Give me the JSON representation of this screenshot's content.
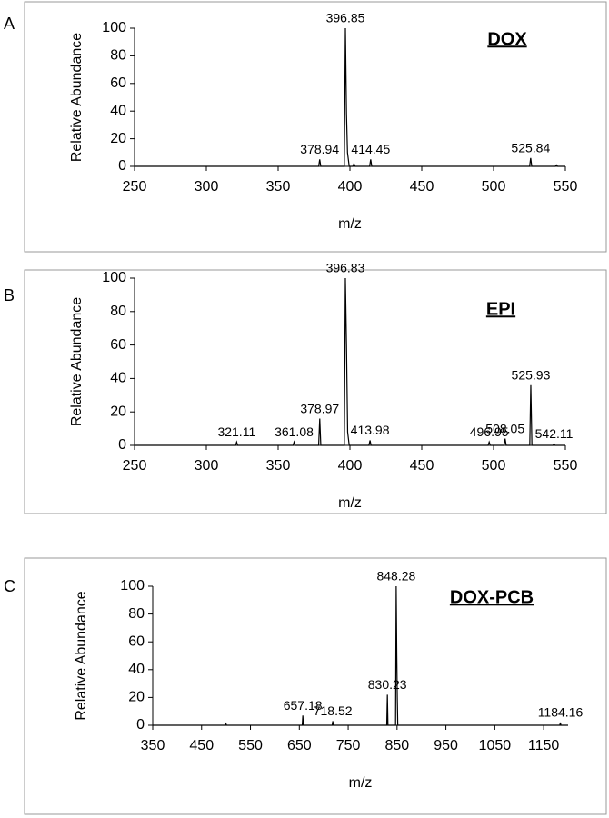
{
  "chart_data": [
    {
      "type": "line",
      "panel": "A",
      "title": "DOX",
      "xlabel": "m/z",
      "ylabel": "Relative Abundance",
      "xlim": [
        250,
        550
      ],
      "xticks": [
        250,
        300,
        350,
        400,
        450,
        500,
        550
      ],
      "ylim": [
        0,
        100
      ],
      "yticks": [
        0,
        20,
        40,
        60,
        80,
        100
      ],
      "color": "#000000",
      "x": [
        250,
        378.2,
        378.94,
        379.7,
        396.1,
        396.85,
        397.6,
        398.3,
        399.5,
        402,
        402.8,
        403.6,
        413.7,
        414.45,
        415.2,
        525.1,
        525.84,
        526.6,
        543,
        543.8,
        544.6,
        550
      ],
      "values": [
        0,
        0,
        5,
        0,
        0,
        100,
        38,
        10,
        0,
        0,
        2,
        0,
        0,
        5,
        0,
        0,
        6,
        0,
        0,
        1,
        0,
        0
      ],
      "annotations": [
        {
          "x": 396.85,
          "y": 100
        },
        {
          "x": 378.94,
          "y": 5
        },
        {
          "x": 414.45,
          "y": 5
        },
        {
          "x": 525.84,
          "y": 6
        }
      ]
    },
    {
      "type": "line",
      "panel": "B",
      "title": "EPI",
      "xlabel": "m/z",
      "ylabel": "Relative Abundance",
      "xlim": [
        250,
        550
      ],
      "xticks": [
        250,
        300,
        350,
        400,
        450,
        500,
        550
      ],
      "ylim": [
        0,
        100
      ],
      "yticks": [
        0,
        20,
        40,
        60,
        80,
        100
      ],
      "color": "#000000",
      "x": [
        250,
        320.4,
        321.11,
        321.8,
        360.4,
        361.08,
        361.8,
        378.2,
        378.97,
        379.7,
        396.1,
        396.83,
        397.6,
        398.4,
        399.5,
        413.2,
        413.98,
        414.7,
        496.2,
        496.95,
        497.7,
        507.3,
        508.05,
        508.8,
        525.2,
        525.93,
        526.7,
        541.4,
        542.11,
        542.8,
        550
      ],
      "values": [
        0,
        0,
        2,
        0,
        0,
        2,
        0,
        0,
        16,
        0,
        0,
        100,
        60,
        8,
        0,
        0,
        3,
        0,
        0,
        2,
        0,
        0,
        4,
        0,
        0,
        36,
        0,
        0,
        1,
        0,
        0
      ],
      "annotations": [
        {
          "x": 396.83,
          "y": 100
        },
        {
          "x": 321.11,
          "y": 2
        },
        {
          "x": 361.08,
          "y": 2
        },
        {
          "x": 378.97,
          "y": 16
        },
        {
          "x": 413.98,
          "y": 3
        },
        {
          "x": 496.95,
          "y": 2
        },
        {
          "x": 508.05,
          "y": 4
        },
        {
          "x": 525.93,
          "y": 36
        },
        {
          "x": 542.11,
          "y": 1
        }
      ]
    },
    {
      "type": "line",
      "panel": "C",
      "title": "DOX-PCB",
      "xlabel": "m/z",
      "ylabel": "Relative Abundance",
      "xlim": [
        350,
        1200
      ],
      "xticks": [
        350,
        450,
        550,
        650,
        750,
        850,
        950,
        1050,
        1150
      ],
      "ylim": [
        0,
        100
      ],
      "yticks": [
        0,
        20,
        40,
        60,
        80,
        100
      ],
      "color": "#000000",
      "x": [
        350,
        499,
        500,
        501,
        656,
        657.18,
        658.4,
        717.3,
        718.52,
        719.7,
        829,
        830.23,
        831.4,
        847,
        848.28,
        849.5,
        850.5,
        851.5,
        1183,
        1184.16,
        1185.3,
        1200
      ],
      "values": [
        0,
        0,
        1,
        0,
        0,
        7,
        0,
        0,
        3,
        0,
        0,
        22,
        0,
        0,
        100,
        50,
        20,
        0,
        0,
        2,
        0,
        0
      ],
      "annotations": [
        {
          "x": 848.28,
          "y": 100
        },
        {
          "x": 657.18,
          "y": 7
        },
        {
          "x": 718.52,
          "y": 3
        },
        {
          "x": 830.23,
          "y": 22
        },
        {
          "x": 1184.16,
          "y": 2
        }
      ]
    }
  ]
}
